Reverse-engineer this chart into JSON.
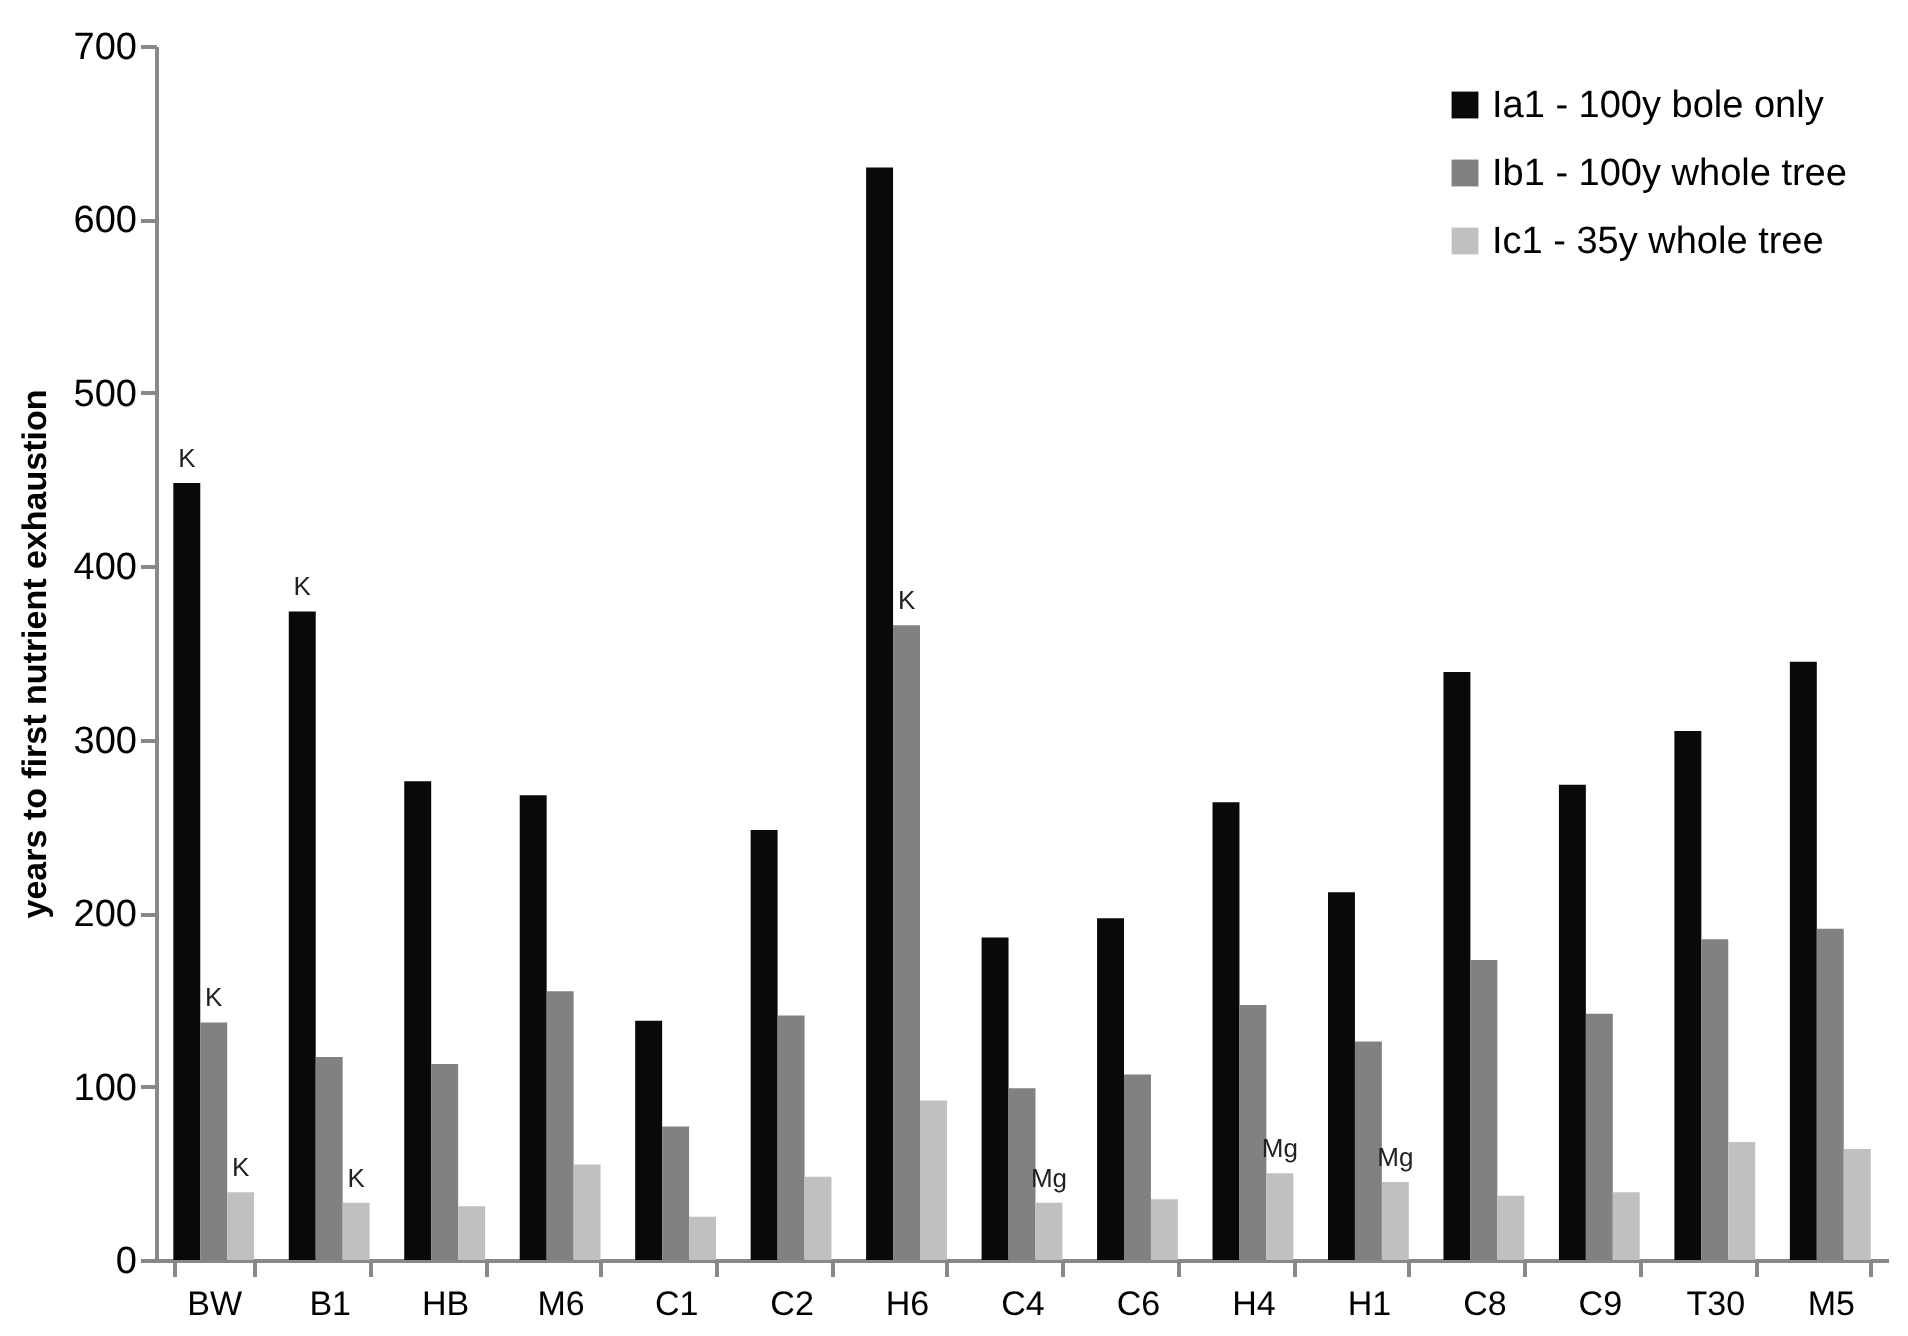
{
  "chart_data": {
    "type": "bar",
    "ylabel": "years to first nutrient exhaustion",
    "categories": [
      "BW",
      "B1",
      "HB",
      "M6",
      "C1",
      "C2",
      "H6",
      "C4",
      "C6",
      "H4",
      "H1",
      "C8",
      "C9",
      "T30",
      "M5"
    ],
    "series": [
      {
        "name": "Ia1 - 100y bole only",
        "color": "#08090a",
        "values": [
          448,
          374,
          276,
          268,
          138,
          248,
          630,
          186,
          197,
          264,
          212,
          339,
          274,
          305,
          345
        ],
        "value_labels": [
          "K",
          "K",
          null,
          null,
          null,
          null,
          null,
          null,
          null,
          null,
          null,
          null,
          null,
          null,
          null
        ]
      },
      {
        "name": "Ib1 - 100y whole tree",
        "color": "#808180",
        "values": [
          137,
          117,
          113,
          155,
          77,
          141,
          366,
          99,
          107,
          147,
          126,
          173,
          142,
          185,
          191
        ],
        "value_labels": [
          "K",
          null,
          null,
          null,
          null,
          null,
          "K",
          null,
          null,
          null,
          null,
          null,
          null,
          null,
          null
        ]
      },
      {
        "name": "Ic1 - 35y whole tree",
        "color": "#c0c0c0",
        "values": [
          39,
          33,
          31,
          55,
          25,
          48,
          92,
          33,
          35,
          50,
          45,
          37,
          39,
          68,
          64
        ],
        "value_labels": [
          "K",
          "K",
          null,
          null,
          null,
          null,
          null,
          "Mg",
          null,
          "Mg",
          "Mg",
          null,
          null,
          null,
          null
        ]
      }
    ],
    "ylim": [
      0,
      700
    ],
    "yticks": [
      0,
      100,
      200,
      300,
      400,
      500,
      600,
      700
    ],
    "grid": false,
    "legend": "top right"
  }
}
